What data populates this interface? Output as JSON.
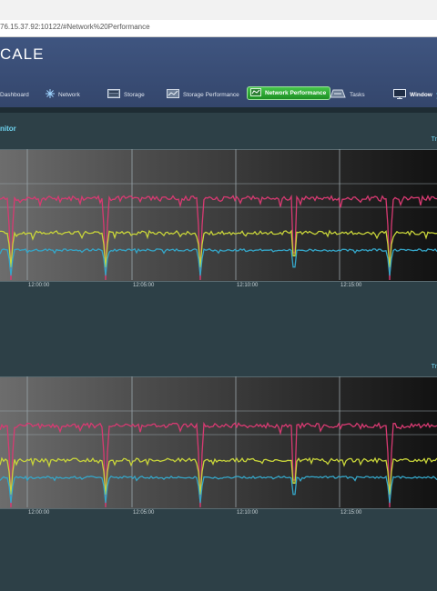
{
  "browser": {
    "url": "76.15.37.92:10122/#Network%20Performance"
  },
  "header": {
    "brand": "CALE"
  },
  "nav": {
    "items": [
      {
        "id": "dashboard",
        "label": "Dashboard"
      },
      {
        "id": "network",
        "label": "Network"
      },
      {
        "id": "storage",
        "label": "Storage"
      },
      {
        "id": "storage-performance",
        "label": "Storage Performance"
      },
      {
        "id": "network-performance",
        "label": "Network Performance",
        "active": true
      },
      {
        "id": "tasks",
        "label": "Tasks"
      },
      {
        "id": "window",
        "label": "Window"
      }
    ]
  },
  "panel": {
    "title": "nitor"
  },
  "charts": [
    {
      "legend": "Tr",
      "x_ticks": [
        "12:00:00",
        "12:05:00",
        "12:10:00",
        "12:15:00"
      ]
    },
    {
      "legend": "Tr",
      "x_ticks": [
        "12:00:00",
        "12:05:00",
        "12:10:00",
        "12:15:00"
      ]
    }
  ],
  "colors": {
    "series_pink": "#d83a72",
    "series_yellow": "#c8d43a",
    "series_cyan": "#35a6c8",
    "accent": "#6fd3ef",
    "active_nav": "#2aa832"
  }
}
